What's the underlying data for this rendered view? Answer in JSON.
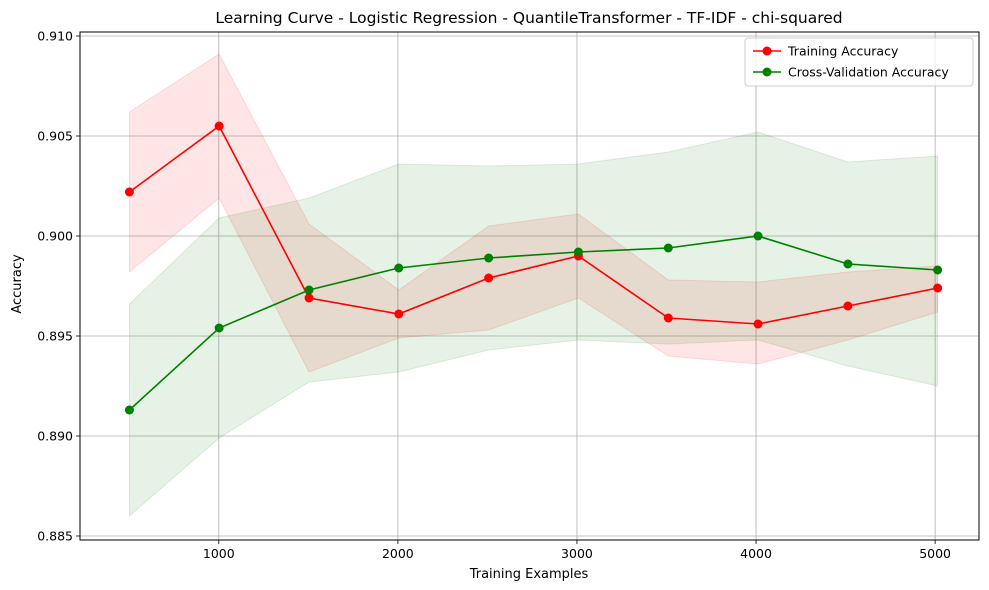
{
  "chart_data": {
    "type": "line",
    "title": "Learning Curve - Logistic Regression - QuantileTransformer - TF-IDF - chi-squared",
    "xlabel": "Training Examples",
    "ylabel": "Accuracy",
    "xlim": [
      225,
      5245
    ],
    "ylim": [
      0.8848,
      0.9102
    ],
    "xticks": [
      1000,
      2000,
      3000,
      4000,
      5000
    ],
    "yticks": [
      0.885,
      0.89,
      0.895,
      0.9,
      0.905,
      0.91
    ],
    "ytick_labels": [
      "0.885",
      "0.890",
      "0.895",
      "0.900",
      "0.905",
      "0.910"
    ],
    "grid": true,
    "legend_position": "top-right",
    "x": [
      501,
      1002,
      1504,
      2005,
      2507,
      3008,
      3510,
      4011,
      4513,
      5014
    ],
    "series": [
      {
        "name": "Training Accuracy",
        "color": "#ff0000",
        "fill_color": "#ff0000",
        "values": [
          0.9022,
          0.9055,
          0.8969,
          0.8961,
          0.8979,
          0.899,
          0.8959,
          0.8956,
          0.8965,
          0.8974
        ],
        "band_upper": [
          0.9062,
          0.9091,
          0.9006,
          0.8973,
          0.9005,
          0.9011,
          0.8978,
          0.8977,
          0.8982,
          0.8985
        ],
        "band_lower": [
          0.8982,
          0.9019,
          0.8932,
          0.8949,
          0.8953,
          0.8969,
          0.894,
          0.8936,
          0.8948,
          0.8962
        ]
      },
      {
        "name": "Cross-Validation Accuracy",
        "color": "#008000",
        "fill_color": "#008000",
        "values": [
          0.8913,
          0.8954,
          0.8973,
          0.8984,
          0.8989,
          0.8992,
          0.8994,
          0.9,
          0.8986,
          0.8983
        ],
        "band_upper": [
          0.8966,
          0.9009,
          0.9019,
          0.9036,
          0.9035,
          0.9036,
          0.9042,
          0.9052,
          0.9037,
          0.904
        ],
        "band_lower": [
          0.886,
          0.8899,
          0.8927,
          0.8932,
          0.8943,
          0.8948,
          0.8946,
          0.8948,
          0.8935,
          0.8925
        ]
      }
    ]
  }
}
